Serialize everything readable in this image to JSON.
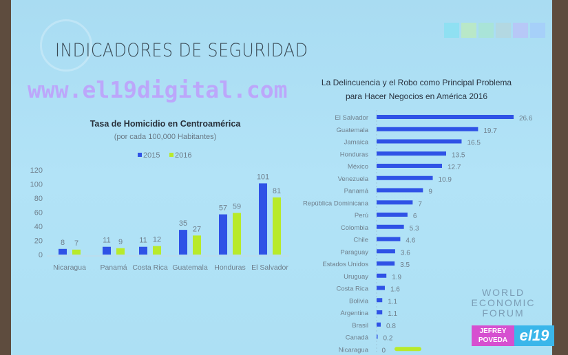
{
  "slide_title": "INDICADORES DE SEGURIDAD",
  "watermark": "www.el19digital.com",
  "wef_logo": [
    "WORLD",
    "ECONOMIC",
    "FORUM"
  ],
  "badge": {
    "name_line1": "JEFREY",
    "name_line2": "POVEDA",
    "brand": "el19"
  },
  "colors": {
    "blue": "#2f52e6",
    "green": "#b8ea2a",
    "background": "#b0e1f5"
  },
  "chart_data": [
    {
      "type": "bar",
      "title": "Tasa de Homicidio en Centroamérica",
      "subtitle": "(por cada 100,000 Habitantes)",
      "categories": [
        "Nicaragua",
        "Panamá",
        "Costa Rica",
        "Guatemala",
        "Honduras",
        "El Salvador"
      ],
      "series": [
        {
          "name": "2015",
          "color": "#2f52e6",
          "values": [
            8,
            11,
            11,
            35,
            57,
            101
          ]
        },
        {
          "name": "2016",
          "color": "#b8ea2a",
          "values": [
            7,
            9,
            12,
            27,
            59,
            81
          ]
        }
      ],
      "ylim": [
        0,
        120
      ],
      "yticks": [
        0,
        20,
        40,
        60,
        80,
        100,
        120
      ],
      "legend": "top",
      "grid": false
    },
    {
      "type": "bar",
      "orientation": "horizontal",
      "title": "La Delincuencia y el  Robo como Principal Problema para Hacer Negocios en América 2016",
      "title_line1": "La Delincuencia y el  Robo como Principal Problema",
      "title_line2": "para Hacer Negocios en América 2016",
      "categories": [
        "El Salvador",
        "Guatemala",
        "Jamaica",
        "Honduras",
        "México",
        "Venezuela",
        "Panamá",
        "República Dominicana",
        "Perú",
        "Colombia",
        "Chile",
        "Paraguay",
        "Estados Unidos",
        "Uruguay",
        "Costa Rica",
        "Bolivia",
        "Argentina",
        "Brasil",
        "Canadá",
        "Nicaragua"
      ],
      "values": [
        26.6,
        19.7,
        16.5,
        13.5,
        12.7,
        10.9,
        9,
        7,
        6,
        5.3,
        4.6,
        3.6,
        3.5,
        1.9,
        1.6,
        1.1,
        1.1,
        0.8,
        0.2,
        0
      ],
      "labels": [
        "26.6",
        "19.7",
        "16.5",
        "13.5",
        "12.7",
        "10.9",
        "9",
        "7",
        "6",
        "5.3",
        "4.6",
        "3.6",
        "3.5",
        "1.9",
        "1.6",
        "1.1",
        "1.1",
        "0.8",
        "0.2",
        "0"
      ],
      "highlight": "Nicaragua",
      "grid": false
    }
  ]
}
